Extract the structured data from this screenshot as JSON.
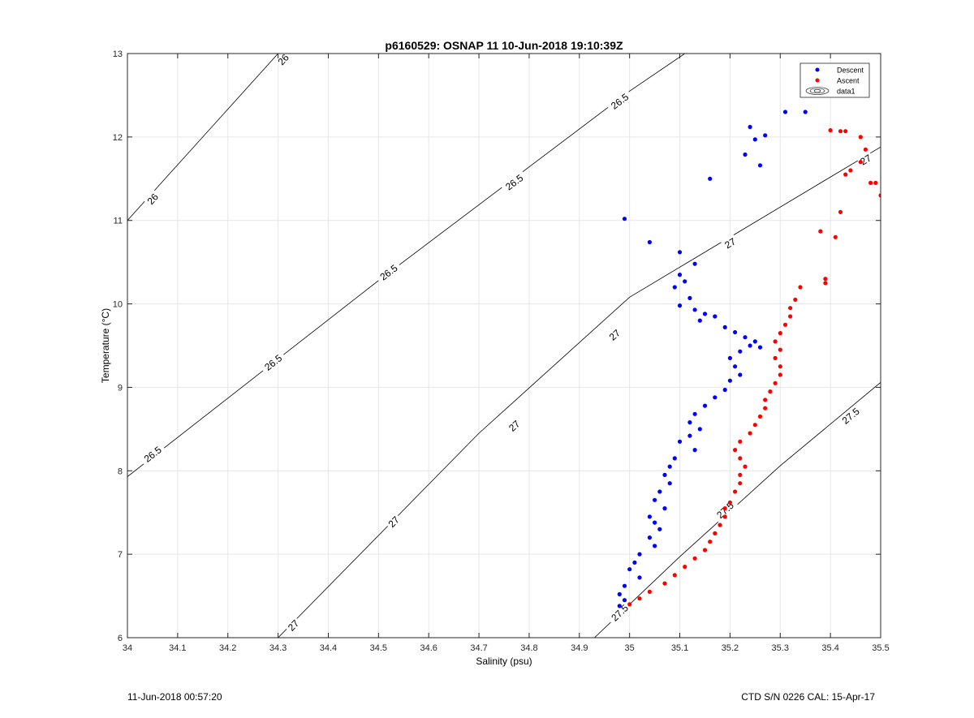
{
  "chart_data": {
    "type": "scatter",
    "title": "p6160529: OSNAP 11 10-Jun-2018 19:10:39Z",
    "xlabel": "Salinity (psu)",
    "ylabel": "Temperature (°C)",
    "xlim": [
      34,
      35.5
    ],
    "ylim": [
      6,
      13
    ],
    "xticks": [
      34,
      34.1,
      34.2,
      34.3,
      34.4,
      34.5,
      34.6,
      34.7,
      34.8,
      34.9,
      35,
      35.1,
      35.2,
      35.3,
      35.4,
      35.5
    ],
    "xtick_labels": [
      "34",
      "34.1",
      "34.2",
      "34.3",
      "34.4",
      "34.5",
      "34.6",
      "34.7",
      "34.8",
      "34.9",
      "35",
      "35.1",
      "35.2",
      "35.3",
      "35.4",
      "35.5"
    ],
    "yticks": [
      6,
      7,
      8,
      9,
      10,
      11,
      12,
      13
    ],
    "ytick_labels": [
      "6",
      "7",
      "8",
      "9",
      "10",
      "11",
      "12",
      "13"
    ],
    "grid": true,
    "legend": {
      "position": "top-right",
      "entries": [
        {
          "label": "Descent",
          "color": "#0000ff",
          "kind": "dot"
        },
        {
          "label": "Ascent",
          "color": "#ff0000",
          "kind": "dot"
        },
        {
          "label": "data1",
          "color": "#000000",
          "kind": "contour"
        }
      ]
    },
    "contours": [
      {
        "label": "26",
        "points": [
          [
            34.0,
            11.0
          ],
          [
            34.3,
            13.0
          ]
        ],
        "label_positions": [
          [
            34.05,
            11.26
          ],
          [
            34.31,
            12.93
          ]
        ]
      },
      {
        "label": "26.5",
        "points": [
          [
            34.0,
            7.93
          ],
          [
            34.5,
            10.28
          ],
          [
            35.0,
            12.55
          ],
          [
            35.11,
            13.0
          ]
        ],
        "label_positions": [
          [
            34.05,
            8.2
          ],
          [
            34.29,
            9.3
          ],
          [
            34.52,
            10.38
          ],
          [
            34.77,
            11.46
          ],
          [
            34.98,
            12.43
          ]
        ]
      },
      {
        "label": "27",
        "points": [
          [
            34.3,
            6.0
          ],
          [
            34.7,
            8.45
          ],
          [
            35.0,
            10.08
          ],
          [
            35.5,
            11.88
          ]
        ],
        "label_positions": [
          [
            34.33,
            6.15
          ],
          [
            34.53,
            7.39
          ],
          [
            34.77,
            8.54
          ],
          [
            34.97,
            9.63
          ],
          [
            35.2,
            10.73
          ],
          [
            35.47,
            11.73
          ]
        ]
      },
      {
        "label": "27.5",
        "points": [
          [
            34.93,
            6.0
          ],
          [
            35.1,
            6.97
          ],
          [
            35.3,
            8.06
          ],
          [
            35.5,
            9.06
          ]
        ],
        "label_positions": [
          [
            34.98,
            6.3
          ],
          [
            35.19,
            7.53
          ],
          [
            35.44,
            8.66
          ]
        ]
      }
    ],
    "series": [
      {
        "name": "Descent",
        "color": "#0000ff",
        "points": [
          [
            34.99,
            11.02
          ],
          [
            35.04,
            10.74
          ],
          [
            35.1,
            10.62
          ],
          [
            35.13,
            10.48
          ],
          [
            35.1,
            10.35
          ],
          [
            35.11,
            10.27
          ],
          [
            35.09,
            10.2
          ],
          [
            35.12,
            10.07
          ],
          [
            35.1,
            9.98
          ],
          [
            35.13,
            9.93
          ],
          [
            35.15,
            9.88
          ],
          [
            35.17,
            9.85
          ],
          [
            35.14,
            9.8
          ],
          [
            35.19,
            9.72
          ],
          [
            35.21,
            9.66
          ],
          [
            35.23,
            9.6
          ],
          [
            35.25,
            9.55
          ],
          [
            35.24,
            9.5
          ],
          [
            35.26,
            9.48
          ],
          [
            35.22,
            9.43
          ],
          [
            35.2,
            9.35
          ],
          [
            35.21,
            9.25
          ],
          [
            35.22,
            9.15
          ],
          [
            35.2,
            9.08
          ],
          [
            35.19,
            8.97
          ],
          [
            35.17,
            8.88
          ],
          [
            35.15,
            8.78
          ],
          [
            35.13,
            8.68
          ],
          [
            35.12,
            8.58
          ],
          [
            35.14,
            8.5
          ],
          [
            35.12,
            8.42
          ],
          [
            35.1,
            8.35
          ],
          [
            35.13,
            8.25
          ],
          [
            35.09,
            8.15
          ],
          [
            35.08,
            8.05
          ],
          [
            35.07,
            7.95
          ],
          [
            35.08,
            7.85
          ],
          [
            35.06,
            7.75
          ],
          [
            35.05,
            7.65
          ],
          [
            35.07,
            7.55
          ],
          [
            35.04,
            7.45
          ],
          [
            35.05,
            7.38
          ],
          [
            35.06,
            7.3
          ],
          [
            35.04,
            7.2
          ],
          [
            35.05,
            7.1
          ],
          [
            35.02,
            7.0
          ],
          [
            35.01,
            6.9
          ],
          [
            35.0,
            6.82
          ],
          [
            35.02,
            6.72
          ],
          [
            34.99,
            6.62
          ],
          [
            34.98,
            6.52
          ],
          [
            34.99,
            6.45
          ],
          [
            34.98,
            6.38
          ],
          [
            35.16,
            11.5
          ],
          [
            35.23,
            11.79
          ],
          [
            35.26,
            11.66
          ],
          [
            35.25,
            11.97
          ],
          [
            35.24,
            12.12
          ],
          [
            35.27,
            12.02
          ],
          [
            35.31,
            12.3
          ],
          [
            35.35,
            12.3
          ]
        ]
      },
      {
        "name": "Ascent",
        "color": "#ff0000",
        "points": [
          [
            35.0,
            6.4
          ],
          [
            35.02,
            6.47
          ],
          [
            35.04,
            6.55
          ],
          [
            35.07,
            6.65
          ],
          [
            35.09,
            6.75
          ],
          [
            35.11,
            6.85
          ],
          [
            35.13,
            6.95
          ],
          [
            35.15,
            7.05
          ],
          [
            35.16,
            7.15
          ],
          [
            35.17,
            7.25
          ],
          [
            35.18,
            7.35
          ],
          [
            35.19,
            7.45
          ],
          [
            35.19,
            7.55
          ],
          [
            35.2,
            7.62
          ],
          [
            35.21,
            7.75
          ],
          [
            35.22,
            7.85
          ],
          [
            35.22,
            7.95
          ],
          [
            35.23,
            8.05
          ],
          [
            35.22,
            8.15
          ],
          [
            35.21,
            8.25
          ],
          [
            35.22,
            8.35
          ],
          [
            35.24,
            8.45
          ],
          [
            35.25,
            8.55
          ],
          [
            35.26,
            8.65
          ],
          [
            35.27,
            8.75
          ],
          [
            35.27,
            8.85
          ],
          [
            35.28,
            8.95
          ],
          [
            35.29,
            9.05
          ],
          [
            35.3,
            9.15
          ],
          [
            35.3,
            9.25
          ],
          [
            35.29,
            9.35
          ],
          [
            35.3,
            9.45
          ],
          [
            35.29,
            9.55
          ],
          [
            35.3,
            9.65
          ],
          [
            35.31,
            9.75
          ],
          [
            35.32,
            9.85
          ],
          [
            35.32,
            9.95
          ],
          [
            35.33,
            10.05
          ],
          [
            35.34,
            10.2
          ],
          [
            35.39,
            10.25
          ],
          [
            35.39,
            10.3
          ],
          [
            35.38,
            10.87
          ],
          [
            35.41,
            10.8
          ],
          [
            35.42,
            11.1
          ],
          [
            35.43,
            11.55
          ],
          [
            35.44,
            11.6
          ],
          [
            35.46,
            11.7
          ],
          [
            35.47,
            11.85
          ],
          [
            35.48,
            11.45
          ],
          [
            35.49,
            11.45
          ],
          [
            35.5,
            11.3
          ],
          [
            35.42,
            12.07
          ],
          [
            35.4,
            12.08
          ],
          [
            35.43,
            12.07
          ],
          [
            35.46,
            12.0
          ]
        ]
      }
    ]
  },
  "footer": {
    "left": "11-Jun-2018 00:57:20",
    "right": "CTD S/N 0226  CAL: 15-Apr-17"
  }
}
